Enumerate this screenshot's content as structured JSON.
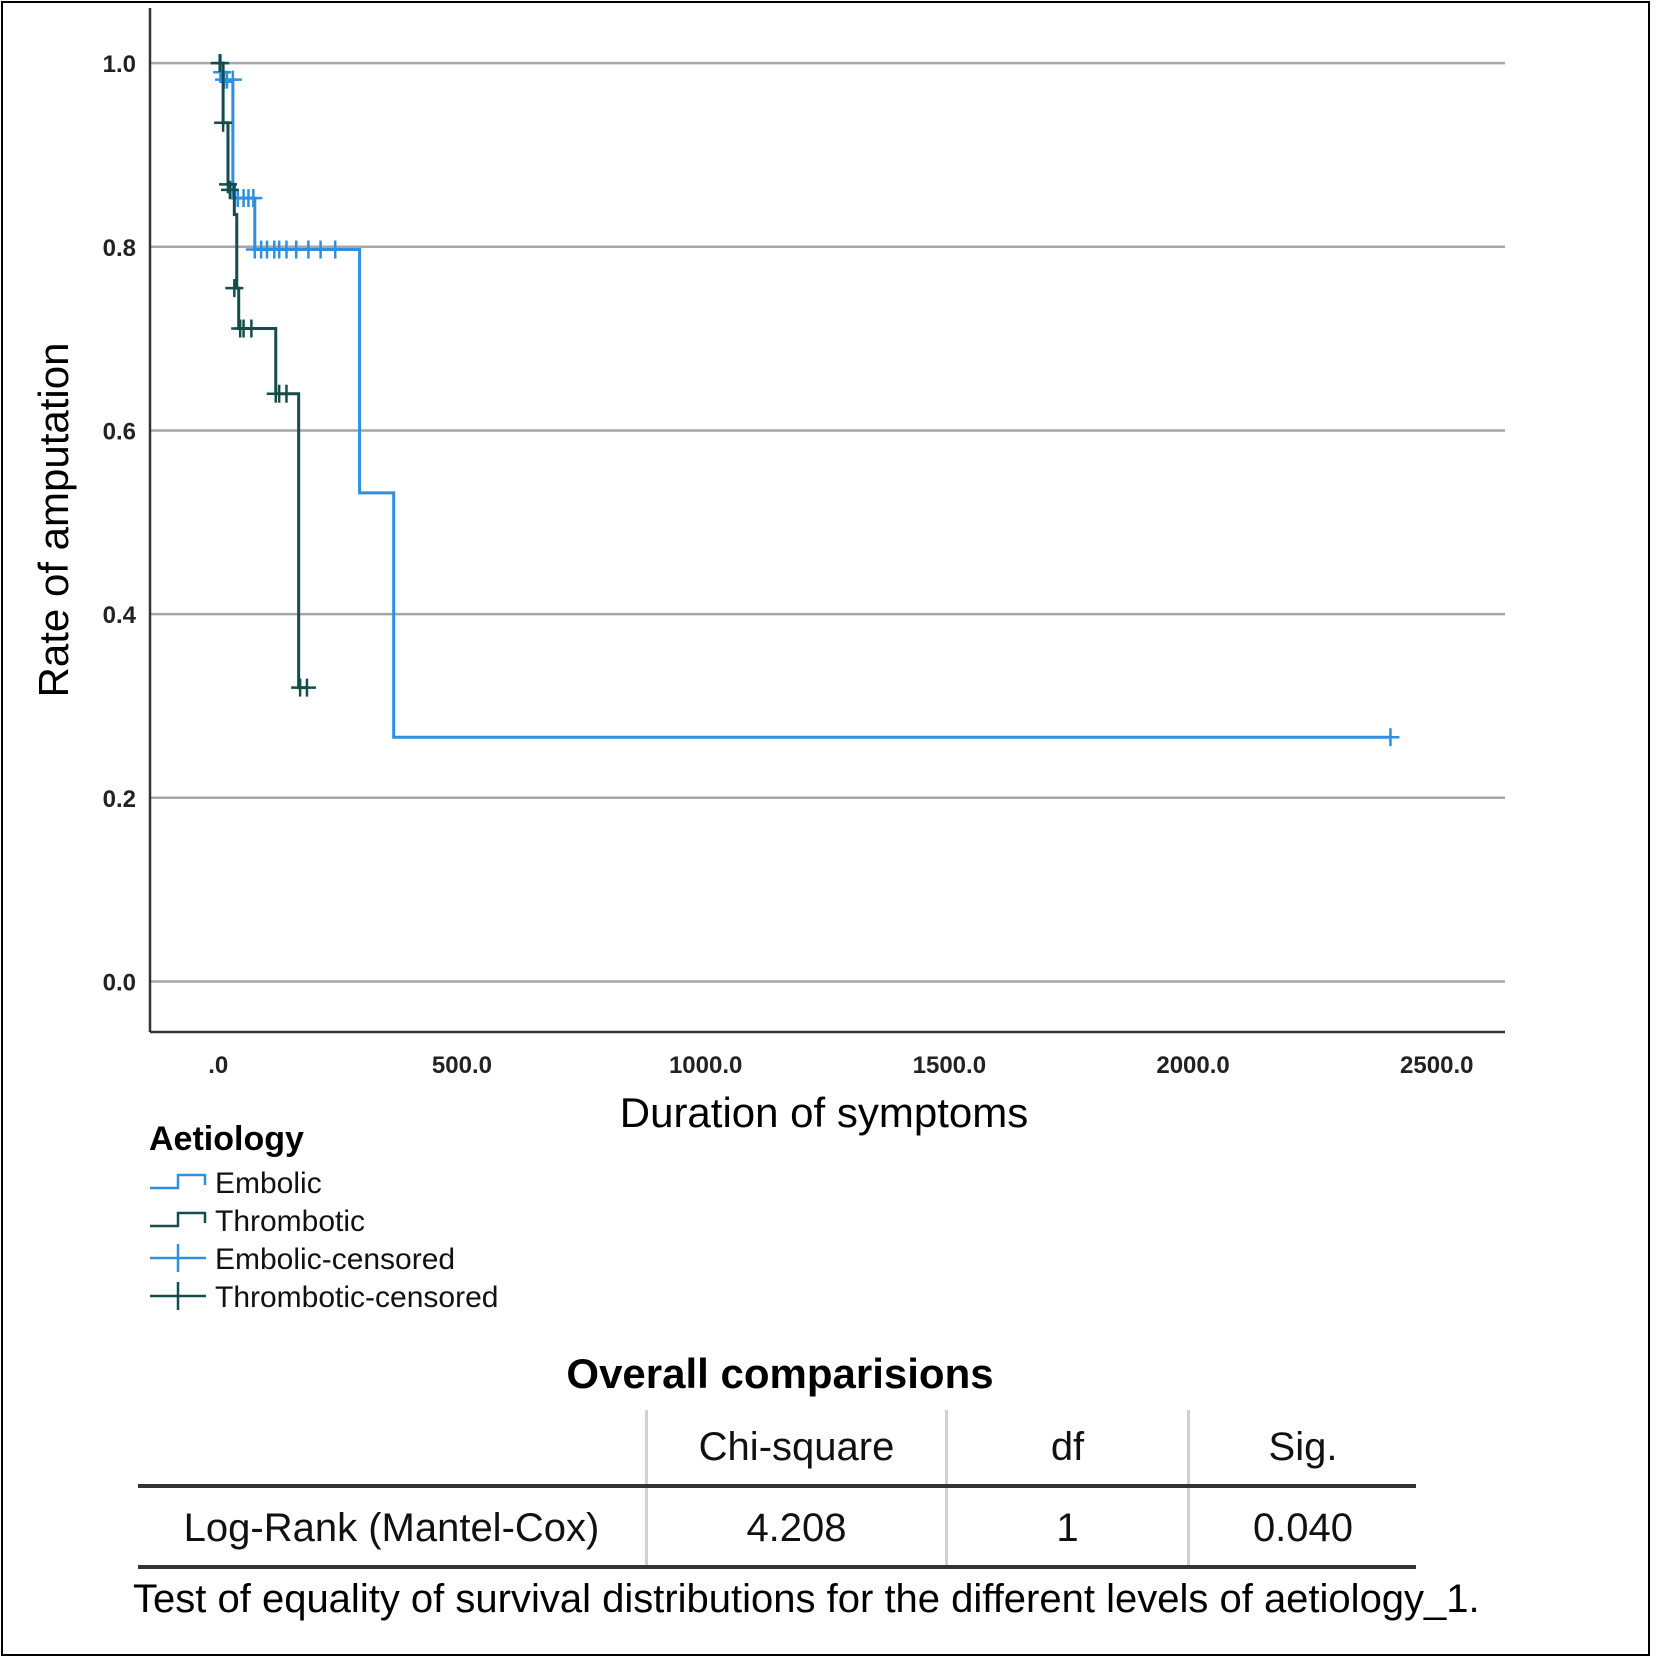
{
  "chart_data": {
    "type": "line",
    "subtype": "kaplan-meier-step",
    "xlabel": "Duration of symptoms",
    "ylabel": "Rate of amputation",
    "xlim": [
      -140,
      2640
    ],
    "ylim": [
      -0.055,
      1.06
    ],
    "x_ticks": [
      {
        "value": 0,
        "label": ".0"
      },
      {
        "value": 500,
        "label": "500.0"
      },
      {
        "value": 1000,
        "label": "1000.0"
      },
      {
        "value": 1500,
        "label": "1500.0"
      },
      {
        "value": 2000,
        "label": "2000.0"
      },
      {
        "value": 2500,
        "label": "2500.0"
      }
    ],
    "y_ticks": [
      {
        "value": 0.0,
        "label": "0.0"
      },
      {
        "value": 0.2,
        "label": "0.2"
      },
      {
        "value": 0.4,
        "label": "0.4"
      },
      {
        "value": 0.6,
        "label": "0.6"
      },
      {
        "value": 0.8,
        "label": "0.8"
      },
      {
        "value": 1.0,
        "label": "1.0"
      }
    ],
    "grid": "horizontal",
    "legend_title": "Aetiology",
    "legend_position": "bottom-left",
    "series": [
      {
        "name": "Embolic",
        "color": "#2f8fe0",
        "steps": [
          [
            0,
            1.0
          ],
          [
            5,
            0.98
          ],
          [
            30,
            0.853
          ],
          [
            75,
            0.797
          ],
          [
            290,
            0.532
          ],
          [
            360,
            0.266
          ],
          [
            2405,
            0.266
          ]
        ],
        "censored": [
          [
            5,
            1.0
          ],
          [
            8,
            0.99
          ],
          [
            12,
            0.982
          ],
          [
            18,
            0.982
          ],
          [
            30,
            0.982
          ],
          [
            40,
            0.853
          ],
          [
            52,
            0.853
          ],
          [
            62,
            0.853
          ],
          [
            72,
            0.853
          ],
          [
            75,
            0.797
          ],
          [
            88,
            0.797
          ],
          [
            100,
            0.797
          ],
          [
            115,
            0.797
          ],
          [
            125,
            0.797
          ],
          [
            140,
            0.797
          ],
          [
            160,
            0.797
          ],
          [
            185,
            0.797
          ],
          [
            210,
            0.797
          ],
          [
            240,
            0.797
          ],
          [
            2405,
            0.266
          ]
        ]
      },
      {
        "name": "Thrombotic",
        "color": "#154d4c",
        "steps": [
          [
            0,
            1.0
          ],
          [
            10,
            0.935
          ],
          [
            20,
            0.868
          ],
          [
            33,
            0.835
          ],
          [
            38,
            0.755
          ],
          [
            42,
            0.711
          ],
          [
            118,
            0.64
          ],
          [
            165,
            0.32
          ],
          [
            180,
            0.32
          ]
        ],
        "censored": [
          [
            3,
            1.0
          ],
          [
            10,
            0.935
          ],
          [
            20,
            0.868
          ],
          [
            24,
            0.862
          ],
          [
            33,
            0.755
          ],
          [
            45,
            0.711
          ],
          [
            52,
            0.711
          ],
          [
            68,
            0.711
          ],
          [
            118,
            0.64
          ],
          [
            125,
            0.64
          ],
          [
            140,
            0.64
          ],
          [
            168,
            0.32
          ],
          [
            182,
            0.32
          ]
        ]
      }
    ],
    "legend": [
      {
        "label": "Embolic",
        "kind": "step",
        "color": "#2f8fe0"
      },
      {
        "label": "Thrombotic",
        "kind": "step",
        "color": "#154d4c"
      },
      {
        "label": "Embolic-censored",
        "kind": "cross",
        "color": "#2f8fe0"
      },
      {
        "label": "Thrombotic-censored",
        "kind": "cross",
        "color": "#154d4c"
      }
    ]
  },
  "stats": {
    "title": "Overall comparisions",
    "headers": [
      "",
      "Chi-square",
      "df",
      "Sig."
    ],
    "rows": [
      {
        "test": "Log-Rank (Mantel-Cox)",
        "chi_square": "4.208",
        "df": "1",
        "sig": "0.040"
      }
    ],
    "caption": "Test of equality of survival distributions for the different levels of aetiology_1."
  }
}
